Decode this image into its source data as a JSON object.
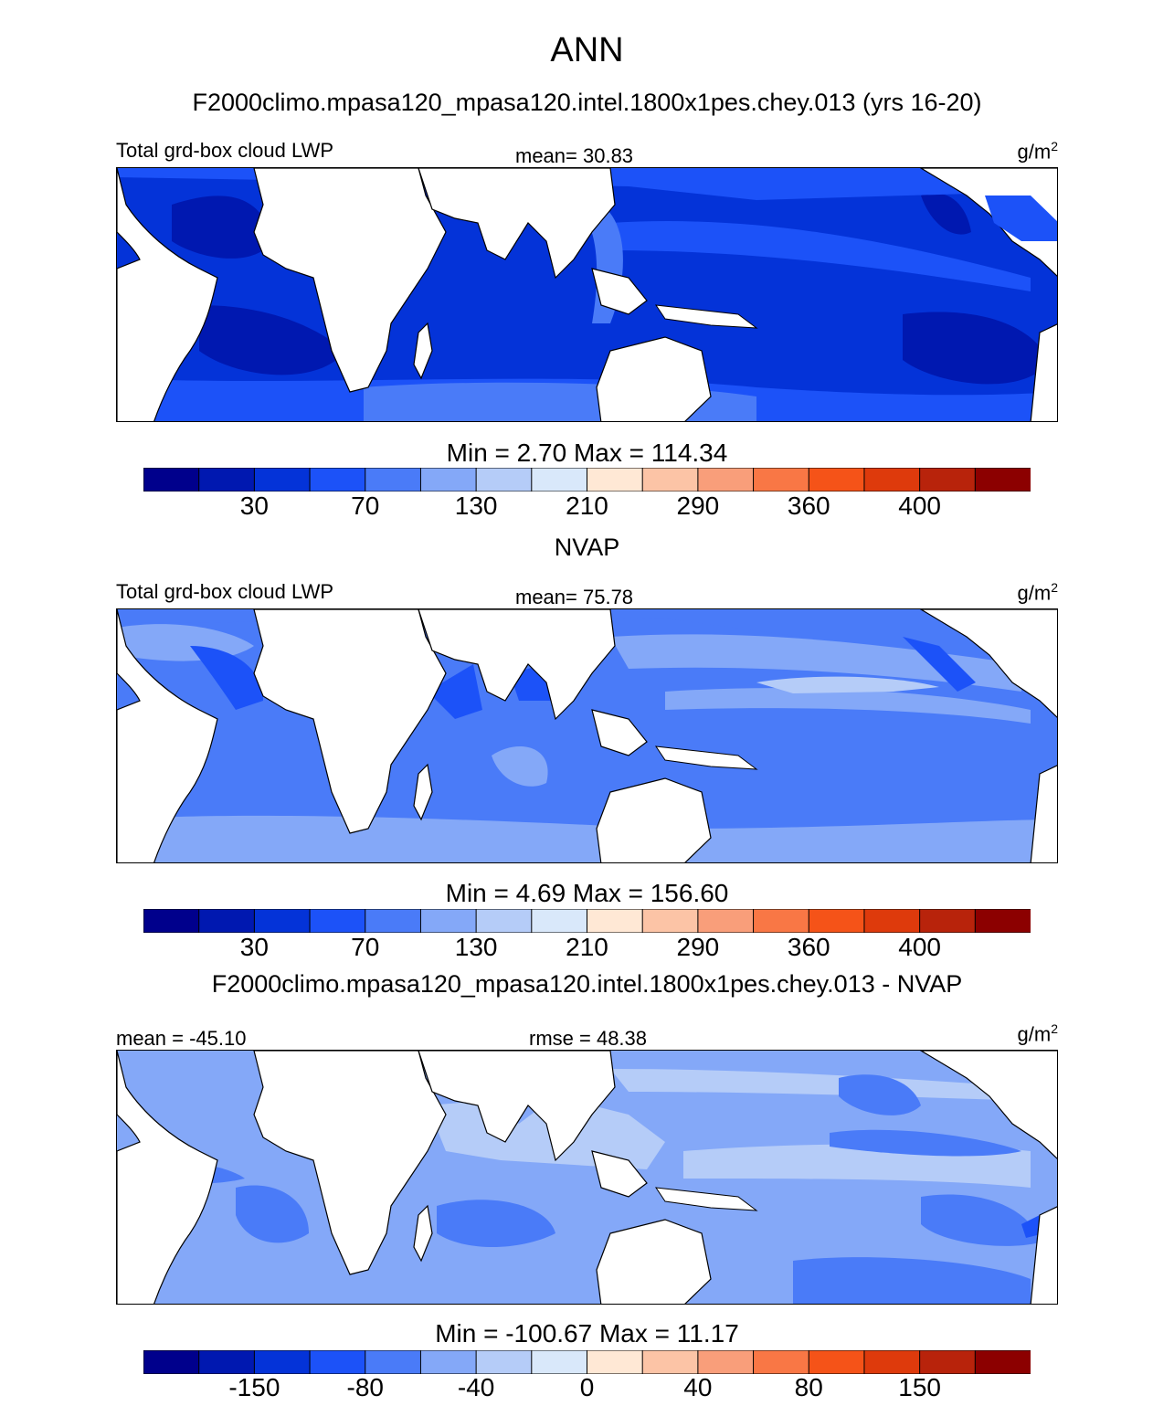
{
  "title": "ANN",
  "colorbar_colors": [
    "#00008C",
    "#0018B0",
    "#0433D8",
    "#1C52F8",
    "#4A7BF8",
    "#84A8F8",
    "#B5CCF8",
    "#D9E8FA",
    "#FFE8D5",
    "#FCC4A6",
    "#F99E7A",
    "#F97745",
    "#F55318",
    "#DE3A0C",
    "#B8230B",
    "#8C0000"
  ],
  "panels": [
    {
      "header": "F2000climo.mpasa120_mpasa120.intel.1800x1pes.chey.013 (yrs 16-20)",
      "left_label": "Total grd-box cloud LWP",
      "center_label": "mean=  30.83",
      "units_base": "g/m",
      "units_exp": "2",
      "map_icon": "contour-map-lwp-model",
      "minmax": "Min =   2.70 Max = 114.34",
      "ticks": [
        "30",
        "70",
        "130",
        "210",
        "290",
        "360",
        "400"
      ]
    },
    {
      "header": "NVAP",
      "left_label": "Total grd-box cloud LWP",
      "center_label": "mean=  75.78",
      "units_base": "g/m",
      "units_exp": "2",
      "map_icon": "contour-map-lwp-obs",
      "minmax": "Min =   4.69 Max = 156.60",
      "ticks": [
        "30",
        "70",
        "130",
        "210",
        "290",
        "360",
        "400"
      ]
    },
    {
      "header": "F2000climo.mpasa120_mpasa120.intel.1800x1pes.chey.013 - NVAP",
      "left_label": "mean = -45.10",
      "center_label": "rmse =  48.38",
      "units_base": "g/m",
      "units_exp": "2",
      "map_icon": "contour-map-lwp-diff",
      "minmax": "Min = -100.67 Max =  11.17",
      "ticks": [
        "-150",
        "-80",
        "-40",
        "0",
        "40",
        "80",
        "150"
      ]
    }
  ]
}
